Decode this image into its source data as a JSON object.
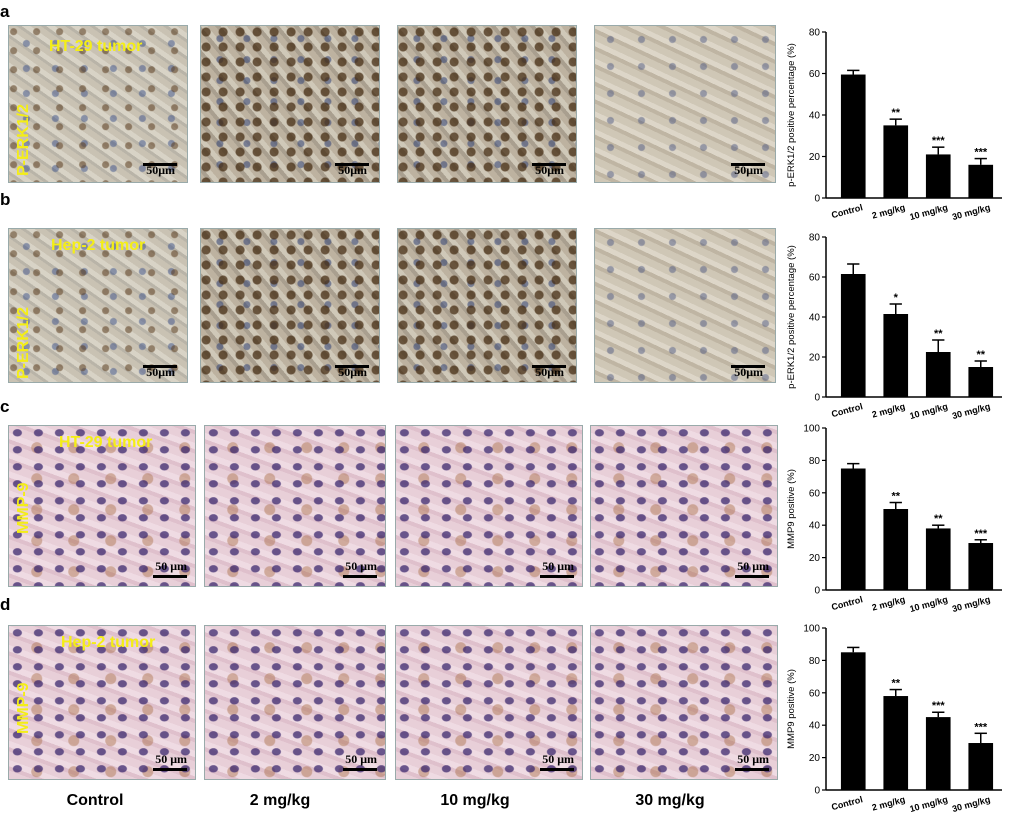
{
  "panels": [
    {
      "letter": "a",
      "tumor": "HT-29 tumor",
      "stain": "P-ERK1/2",
      "scale": "50μm"
    },
    {
      "letter": "b",
      "tumor": "Hep-2 tumor",
      "stain": "P-ERK1/2",
      "scale": "50μm"
    },
    {
      "letter": "c",
      "tumor": "HT-29 tumor",
      "stain": "MMP-9",
      "scale": "50 μm"
    },
    {
      "letter": "d",
      "tumor": "Hep-2 tumor",
      "stain": "MMP-9",
      "scale": "50 μm"
    }
  ],
  "columns": [
    "Control",
    "2 mg/kg",
    "10 mg/kg",
    "30 mg/kg"
  ],
  "colors": {
    "bar": "#000000",
    "label": "#f4ee16"
  },
  "chart_data": [
    {
      "type": "bar",
      "categories": [
        "Control",
        "2 mg/kg",
        "10 mg/kg",
        "30 mg/kg"
      ],
      "values": [
        59.5,
        35,
        21,
        16
      ],
      "errors": [
        2,
        3,
        3.5,
        3
      ],
      "significance": [
        "",
        "**",
        "***",
        "***"
      ],
      "ylabel": "p-ERK1/2 positive percentage (%)",
      "ylim": [
        0,
        80
      ],
      "yticks": [
        0,
        20,
        40,
        60,
        80
      ]
    },
    {
      "type": "bar",
      "categories": [
        "Control",
        "2 mg/kg",
        "10 mg/kg",
        "30 mg/kg"
      ],
      "values": [
        61.5,
        41.5,
        22.5,
        15
      ],
      "errors": [
        5,
        5,
        6,
        3
      ],
      "significance": [
        "",
        "*",
        "**",
        "**"
      ],
      "ylabel": "p-ERK1/2 positive percentage (%)",
      "ylim": [
        0,
        80
      ],
      "yticks": [
        0,
        20,
        40,
        60,
        80
      ]
    },
    {
      "type": "bar",
      "categories": [
        "Control",
        "2 mg/kg",
        "10 mg/kg",
        "30 mg/kg"
      ],
      "values": [
        75,
        50,
        38,
        29
      ],
      "errors": [
        3,
        4,
        2,
        2
      ],
      "significance": [
        "",
        "**",
        "**",
        "***"
      ],
      "ylabel": "MMP9 positive (%)",
      "ylim": [
        0,
        100
      ],
      "yticks": [
        0,
        20,
        40,
        60,
        80,
        100
      ]
    },
    {
      "type": "bar",
      "categories": [
        "Control",
        "2 mg/kg",
        "10 mg/kg",
        "30 mg/kg"
      ],
      "values": [
        85,
        58,
        45,
        29
      ],
      "errors": [
        3,
        4,
        3,
        6
      ],
      "significance": [
        "",
        "**",
        "***",
        "***"
      ],
      "ylabel": "MMP9 positive (%)",
      "ylim": [
        0,
        100
      ],
      "yticks": [
        0,
        20,
        40,
        60,
        80,
        100
      ]
    }
  ]
}
